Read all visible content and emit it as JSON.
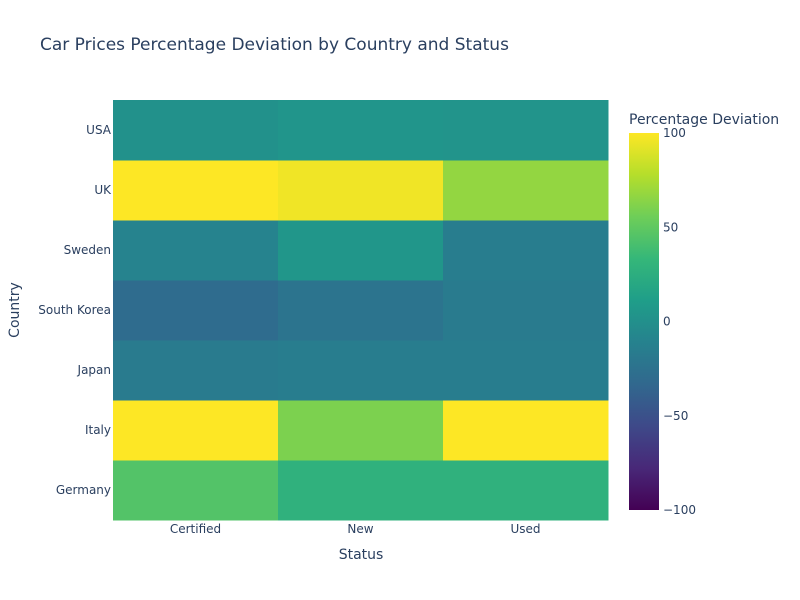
{
  "chart_data": {
    "type": "heatmap",
    "title": "Car Prices Percentage Deviation by Country and Status",
    "xlabel": "Status",
    "ylabel": "Country",
    "x": [
      "Certified",
      "New",
      "Used"
    ],
    "y": [
      "Germany",
      "Italy",
      "Japan",
      "South Korea",
      "Sweden",
      "UK",
      "USA"
    ],
    "z": [
      [
        45,
        28,
        28
      ],
      [
        100,
        60,
        100
      ],
      [
        -17,
        -15,
        -15
      ],
      [
        -30,
        -23,
        -17
      ],
      [
        -10,
        5,
        -15
      ],
      [
        100,
        96,
        67
      ],
      [
        1,
        4,
        3
      ]
    ],
    "colorbar": {
      "title": "Percentage Deviation",
      "min": -100,
      "max": 100,
      "ticks": [
        100,
        50,
        0,
        -50,
        -100
      ],
      "tick_labels": [
        "100",
        "50",
        "0",
        "−50",
        "−100"
      ],
      "colorscale": "viridis"
    }
  }
}
